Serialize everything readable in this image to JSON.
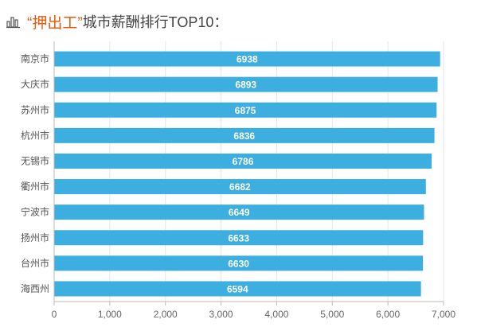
{
  "header": {
    "icon": "bar-chart-icon",
    "highlight": "“押出工”",
    "rest": "城市薪酬排行TOP10："
  },
  "chart_data": {
    "type": "bar",
    "orientation": "horizontal",
    "categories": [
      "南京市",
      "大庆市",
      "苏州市",
      "杭州市",
      "无锡市",
      "衢州市",
      "宁波市",
      "扬州市",
      "台州市",
      "海西州"
    ],
    "values": [
      6938,
      6893,
      6875,
      6836,
      6786,
      6682,
      6649,
      6633,
      6630,
      6594
    ],
    "value_labels": [
      "6938",
      "6893",
      "6875",
      "6836",
      "6786",
      "6682",
      "6649",
      "6633",
      "6630",
      "6594"
    ],
    "xlim": [
      0,
      7000
    ],
    "xticks": [
      0,
      1000,
      2000,
      3000,
      4000,
      5000,
      6000,
      7000
    ],
    "xtick_labels": [
      "0",
      "1,000",
      "2,000",
      "3,000",
      "4,000",
      "5,000",
      "6,000",
      "7,000"
    ],
    "bar_color": "#3daee0",
    "grid": "vertical",
    "legend": "none"
  }
}
